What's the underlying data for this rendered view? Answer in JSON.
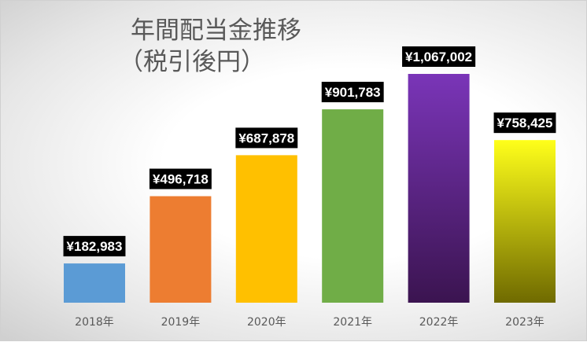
{
  "chart_data": {
    "type": "bar",
    "title": "年間配当金推移",
    "subtitle": "（税引後円）",
    "categories": [
      "2018年",
      "2019年",
      "2020年",
      "2021年",
      "2022年",
      "2023年"
    ],
    "values": [
      182983,
      496718,
      687878,
      901783,
      1067002,
      758425
    ],
    "data_labels": [
      "¥182,983",
      "¥496,718",
      "¥687,878",
      "¥901,783",
      "¥1,067,002",
      "¥758,425"
    ],
    "bar_colors": [
      [
        "#5b9bd5",
        "#5b9bd5"
      ],
      [
        "#ed7d31",
        "#ed7d31"
      ],
      [
        "#ffc000",
        "#ffc000"
      ],
      [
        "#70ad47",
        "#70ad47"
      ],
      [
        "#7a35b8",
        "#3b1450"
      ],
      [
        "#ffff1a",
        "#6f6a00"
      ]
    ],
    "label_background": "#000000",
    "ylim": [
      0,
      1100000
    ],
    "grid": false,
    "legend": "none"
  }
}
